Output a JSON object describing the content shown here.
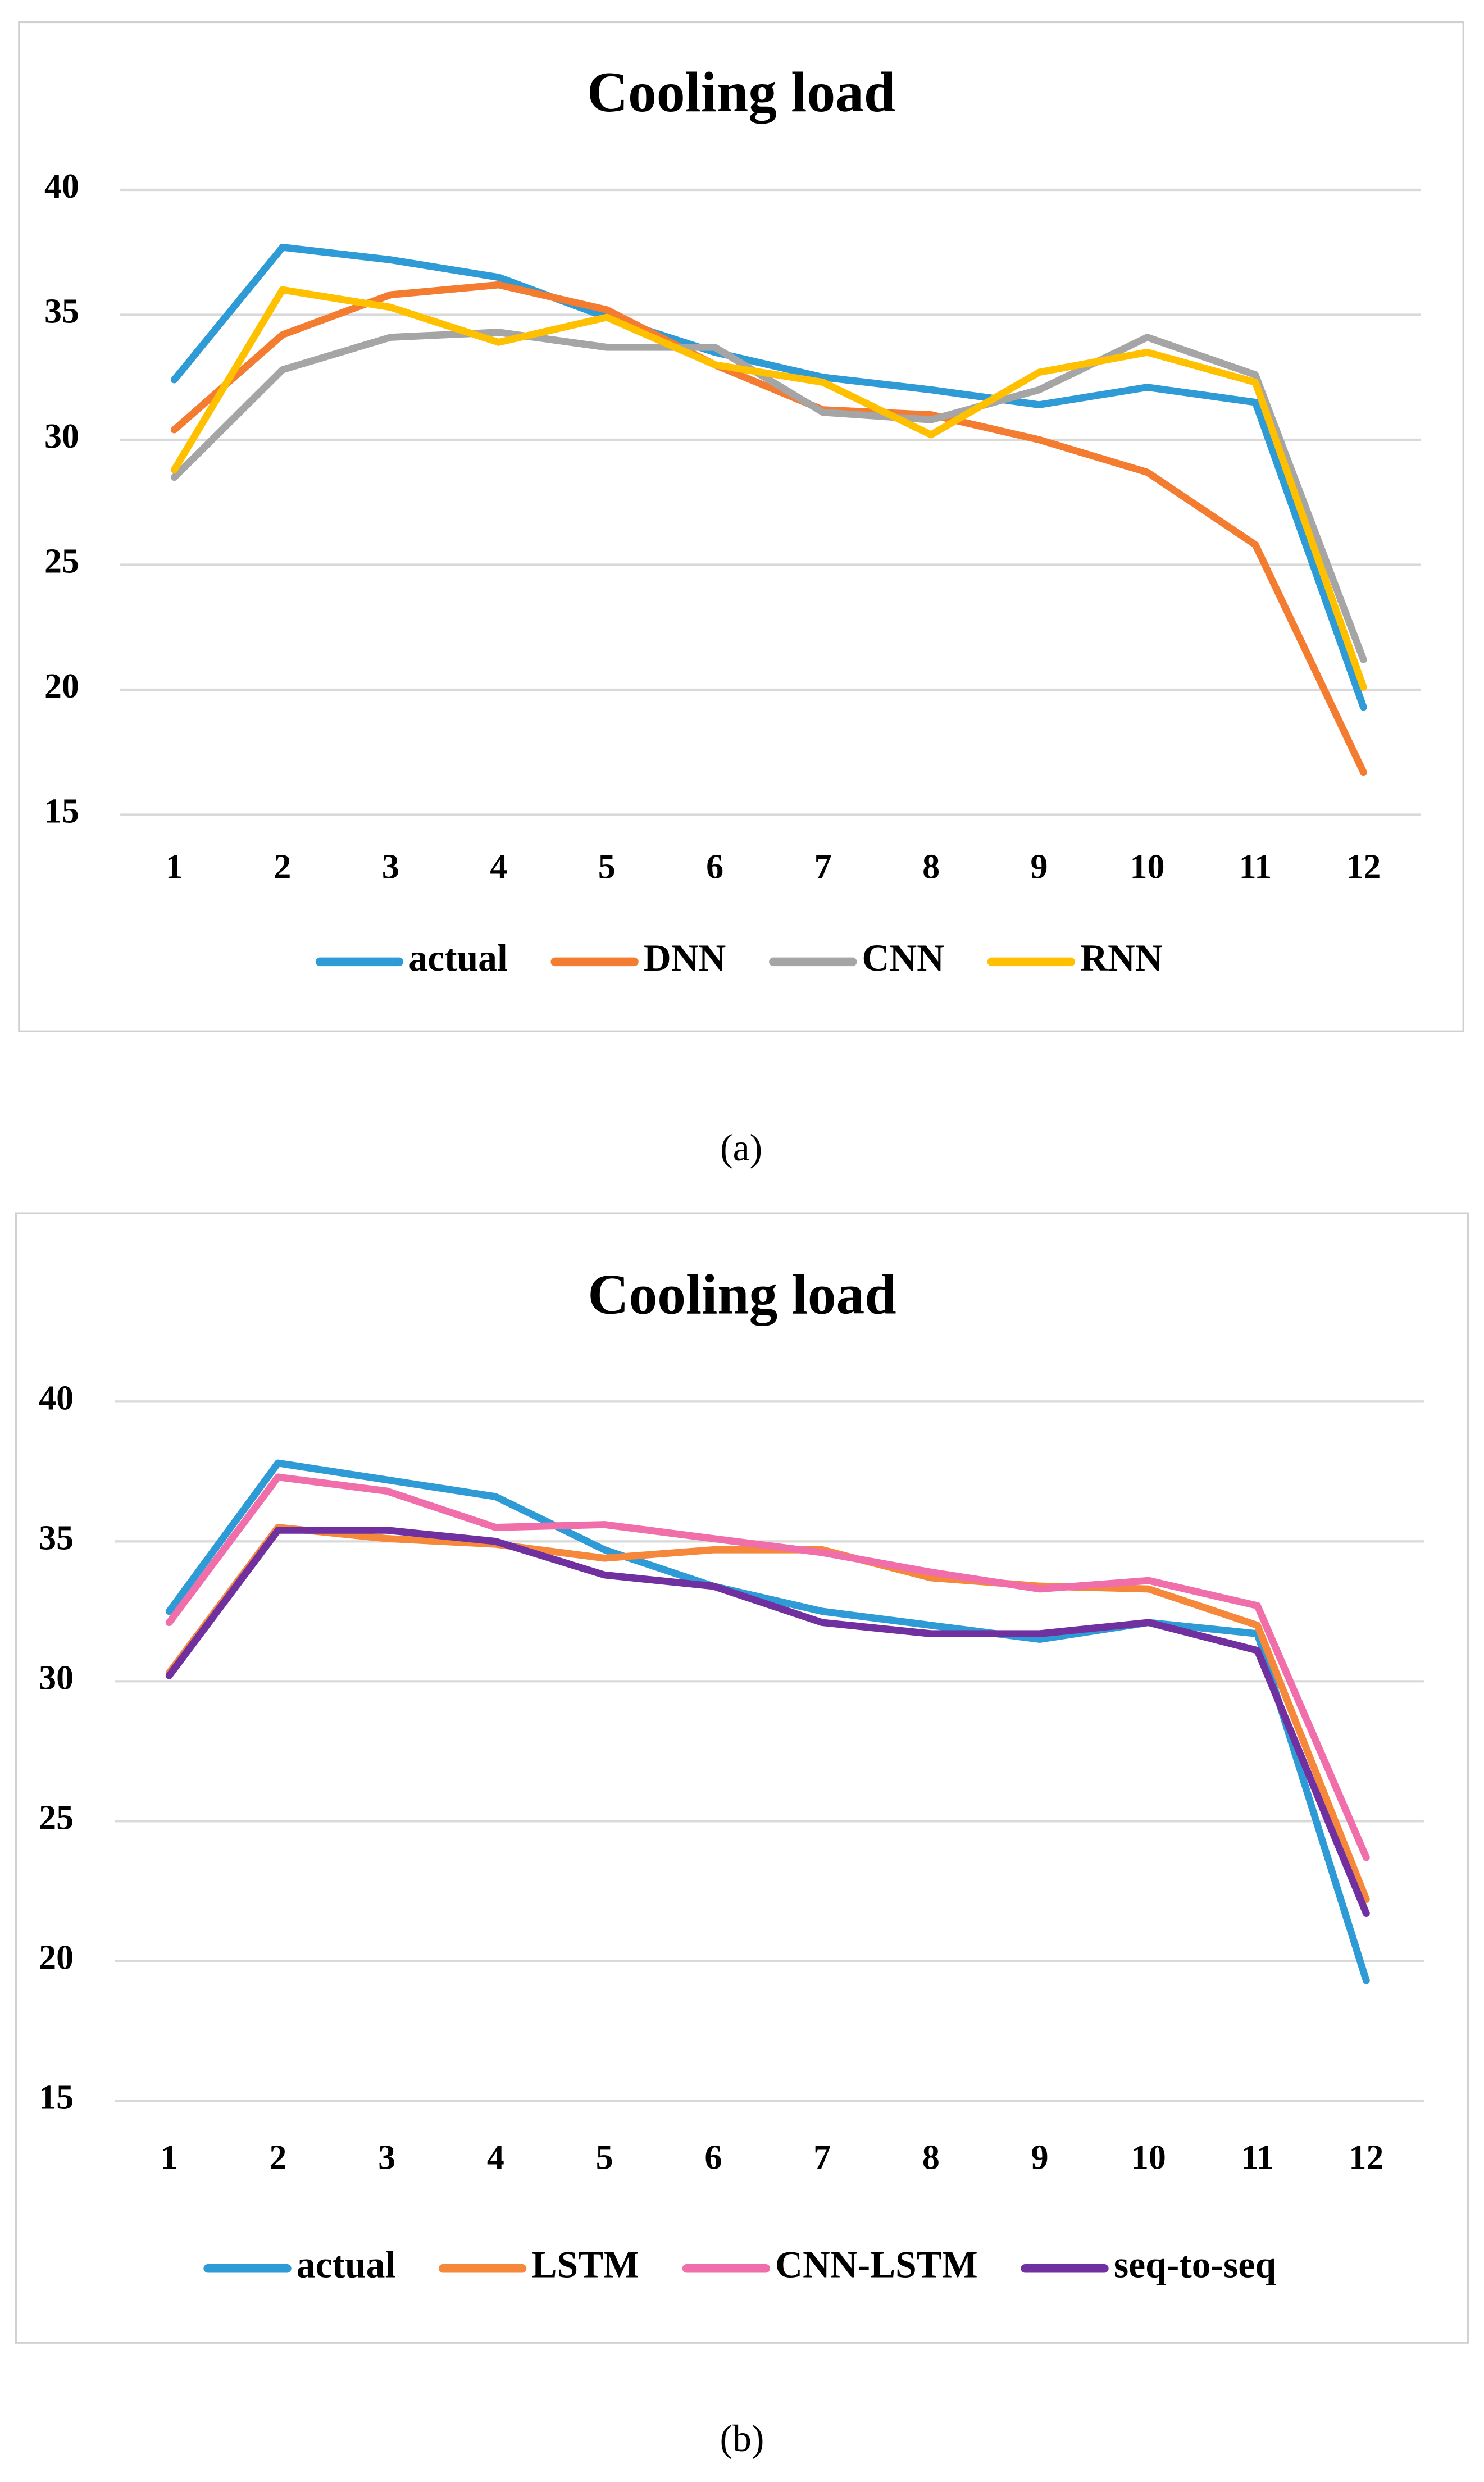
{
  "chart_data": [
    {
      "type": "line",
      "title": "Cooling load",
      "caption": "(a)",
      "categories": [
        "1",
        "2",
        "3",
        "4",
        "5",
        "6",
        "7",
        "8",
        "9",
        "10",
        "11",
        "12"
      ],
      "ylim": [
        15,
        40
      ],
      "yticks": [
        15,
        20,
        25,
        30,
        35,
        40
      ],
      "grid": true,
      "legend": "bottom",
      "series": [
        {
          "name": "actual",
          "color": "#2e9bd6",
          "values": [
            32.4,
            37.7,
            37.2,
            36.5,
            34.9,
            33.5,
            32.5,
            32.0,
            31.4,
            32.1,
            31.5,
            19.3
          ]
        },
        {
          "name": "DNN",
          "color": "#f47c30",
          "values": [
            30.4,
            34.2,
            35.8,
            36.2,
            35.2,
            33.0,
            31.2,
            31.0,
            30.0,
            28.7,
            25.8,
            16.7
          ]
        },
        {
          "name": "CNN",
          "color": "#a5a5a5",
          "values": [
            28.5,
            32.8,
            34.1,
            34.3,
            33.7,
            33.7,
            31.1,
            30.8,
            32.0,
            34.1,
            32.6,
            21.2
          ]
        },
        {
          "name": "RNN",
          "color": "#ffc000",
          "values": [
            28.8,
            36.0,
            35.3,
            33.9,
            34.9,
            33.0,
            32.3,
            30.2,
            32.7,
            33.5,
            32.3,
            20.1
          ]
        }
      ]
    },
    {
      "type": "line",
      "title": "Cooling load",
      "caption": "(b)",
      "categories": [
        "1",
        "2",
        "3",
        "4",
        "5",
        "6",
        "7",
        "8",
        "9",
        "10",
        "11",
        "12"
      ],
      "ylim": [
        15,
        40
      ],
      "yticks": [
        15,
        20,
        25,
        30,
        35,
        40
      ],
      "grid": true,
      "legend": "bottom",
      "series": [
        {
          "name": "actual",
          "color": "#2e9bd6",
          "values": [
            32.5,
            37.8,
            37.2,
            36.6,
            34.7,
            33.4,
            32.5,
            32.0,
            31.5,
            32.1,
            31.7,
            19.3
          ]
        },
        {
          "name": "LSTM",
          "color": "#f5883a",
          "values": [
            30.3,
            35.5,
            35.1,
            34.9,
            34.4,
            34.7,
            34.7,
            33.7,
            33.4,
            33.3,
            32.0,
            22.2
          ]
        },
        {
          "name": "CNN-LSTM",
          "color": "#f06eaa",
          "values": [
            32.1,
            37.3,
            36.8,
            35.5,
            35.6,
            35.1,
            34.6,
            33.9,
            33.3,
            33.6,
            32.7,
            23.7
          ]
        },
        {
          "name": "seq-to-seq",
          "color": "#7030a0",
          "values": [
            30.2,
            35.4,
            35.4,
            35.0,
            33.8,
            33.4,
            32.1,
            31.7,
            31.7,
            32.1,
            31.1,
            21.7
          ]
        }
      ]
    }
  ]
}
